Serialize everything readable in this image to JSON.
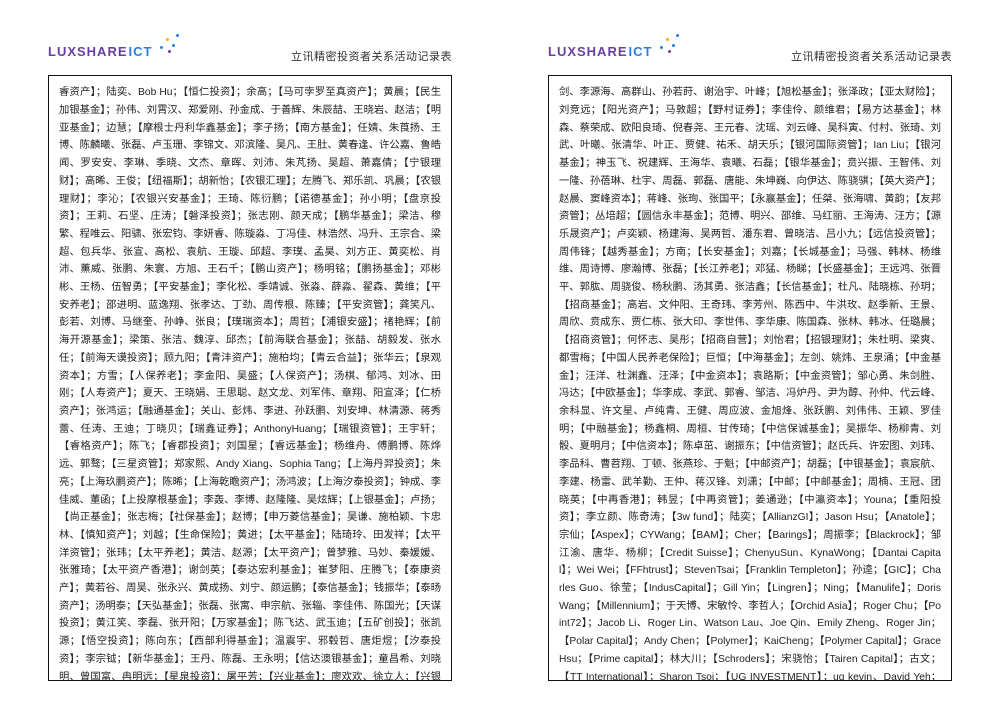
{
  "logo": {
    "lux": "LUXSHARE",
    "ict": "ICT"
  },
  "docTitle": "立讯精密投资者关系活动记录表",
  "leftText": "睿资产】；陆奕、Bob Hu；【恒仁投资】；余高；【马可孛罗至真资产】；黄晨；【民生加银基金】；孙伟、刘霄汉、郑爱刚、孙金成、于善辉、朱辰喆、王晓岩、赵洁；【明亚基金】；边慧；【摩根士丹利华鑫基金】；李子扬；【南方基金】；任婧、朱莨扬、王博、陈麟曦、张磊、卢玉珊、李锦文、邓滨隆、吴凡、王肚、黄春逢、许公嘉、鲁皓闻、罗安安、李琳、季晓、文杰、章晖、刘沛、朱芃扬、吴超、萧嘉倩；【宁银理财】；高晞、王俊；【纽福斯】；胡新怡；【农银汇理】；左腾飞、郑乐凯、巩晨；【农银理财】；李沁；【农银兴安基金】；王琦、陈衍鹏；【诺德基金】；孙小明；【盘京投资】；王莉、石坚、庄涛；【磐泽投资】；张志刚、颜天成；【鹏华基金】；梁洁、穆繁、程唯云、阳骕、张宏钧、李妍睿、陈璇淼、丁冯佳、林浩然、冯升、王宗合、梁超、包兵华、张宣、高松、袁航、王璇、邱超、李璞、孟昊、刘方正、黄奕松、肖沛、薰威、张鹏、朱寰、方旭、王石千；【鹏山资产】；杨明铭；【鹏扬基金】；邓彬彬、王杨、伍智勇；【平安基金】；李化松、季靖诚、张淼、薛淼、翟森、黄维；【平安养老】；邵进明、蓝逸翔、张孝达、丁劲、周传根、陈臻；【平安资管】；龚笑凡、彭若、刘博、马继奎、孙峥、张良；【璞瑞资本】；周哲；【浦银安盛】；禇艳辉；【前海开源基金】；梁策、张洁、魏淳、邱杰；【前海联合基金】；张喆、胡毅发、张水任；【前海天谟投资】；顾九阳；【青沣资产】；施柏均；【青云合益】；张华云；【泉观资本】；方雪；【人保养老】；李金阳、吴盛；【人保资产】；汤棋、郁鸿、刘冰、田刚；【人寿资产】；夏天、王晓娟、王思聪、赵文龙、刘军伟、章翔、阳宣泽；【仁桥资产】；张鸿运；【融通基金】；关山、彭炜、李进、孙跃鹏、刘安坤、林清源、蒋秀蕾、任涛、王迪；丁晓贝；【瑞鑫证券】；AnthonyHuang；【瑞银资管】；王宇轩；【睿格资产】；陈飞；【睿郡投资】；刘国星；【睿远基金】；杨维舟、傅鹏博、陈烨远、郭骜；【三星资管】；郑家熙、Andy Xiang、Sophia Tang；【上海丹羿投资】；朱亮；【上海玖鹏资产】；陈晞；【上海乾瞻资产】；汤鸿波；【上海汐泰投资】；钟成、李佳威、董函；【上投摩根基金】；李轰、李博、赵隆隆、吴炫辉；【上银基金】；卢扬；【尚正基金】；张志梅；【社保基金】；赵博；【申万菱信基金】；吴谦、施柏颖、卞忠林、【慎知资产】；刘越；【生命保险】；黄进；【太平基金】；陆琦玲、田发祥；【太平洋资管】；张玮；【太平养老】；黄洁、赵源；【太平资产】；曾梦雅、马妙、秦媛媛、张雅琦；【太平资产香港】；谢剑英；【泰达宏利基金】；崔梦阳、庄腾飞；【泰康资产】；黄若谷、周吴、张永兴、黄成扬、刘宁、颜运鹏；【泰信基金】；钱振华；【泰旸资产】；汤明泰；【天弘基金】；张磊、张寓、申宗航、张辎、李佳伟、陈国光；【天谋投资】；黄江笑、李磊、张开阳；【万家基金】；陈飞达、武玉迪；【五矿创投】；张凯源；【悟空投资】；陈向东；【西部利得基金】；温震宇、邪毂哲、唐炬煜；【汐泰投资】；李宗钺；【新华基金】；王丹、陈磊、王永明；【信达澳银基金】；童昌希、刘晓明、曾国富、冉明远；【星泉投资】；屠平芳；【兴业基金】；廖欢欢、徐立人；【兴银理财】；江耀堂、胡一峰；【兴证全球基金】；钱鑫、谭佳英、黎秀华、王品、乔迁、陆士杰、童兰、张楷淳、周文波、陈泓志、曹娜、何",
  "rightText": "剑、李源海、高群山、孙若莳、谢治宇、叶峰；【旭松基金】；张泽政；【亚太财险】；刘竞远；【阳光资产】；马敦超；【野村证券】；李佳伶、颜维君；【易方达基金】；林森、蔡荣成、欧阳良琦、倪春尧、王元春、沈瑶、刘云峰、吴科寅、付村、张琦、刘武、叶曦、张清华、叶正、贾健、祐禾、胡天乐；【银河国际资管】；Ian Liu；【银河基金】；神玉飞、祝建辉、王海华、袁曦、石磊；【银华基金】；贲兴振、王智伟、刘一隆、孙蓓琳、杜宇、周磊、郭磊、唐能、朱坤巍、向伊达、陈骁骐；【英大资产】；赵晨、窦峰资本】；蒋峰、张珣、张国平；【永赢基金】；任桀、张海啸、黄韵；【友邦资管】；丛培超；【圆信永丰基金】；范博、明兴、邵维、马红丽、王海涛、汪方；【源乐晟资产】；卢奕颖、杨建海、吴两哲、潘东君、曾晓洁、吕小九；【远信投资管】；周伟锋；【越秀基金】；方南；【长安基金】；刘嘉；【长城基金】；马强、韩林、杨维维、周诗博、廖瀚博、张磊；【长江养老】；邓猛、杨睇；【长盛基金】；王远鸿、张晋平、郭肱、周骁俊、杨秋鹏、汤其勇、张洁鑫；【长信基金】；杜凡、陆晓栋、孙玥；【招商基金】；高岩、文仲阳、王奇玮、李芳州、陈西中、牛洪玫、赵季新、王景、周欣、贲成东、贾仁栋、张大印、李世伟、李华康、陈国森、张林、韩冰、任璐晨；【招商资管】；何怀志、吴彤；【招商自营】；刘怡君；【招银理财】；朱杜明、梁爽、都雪梅；【中国人民养老保险】；巨恒；【中海基金】；左剑、姚炜、王泉涌；【中金基金】；汪洋、杜渊鑫、汪泽；【中金资本】；袁路斯；【中金资管】；邹心勇、朱剑胜、冯达；【中欧基金】；华李成、李武、郭睿、邹洁、冯炉丹、尹为醇、孙仲、代云峰、余科显、许文星、卢纯青、王健、周应波、金旭烽、张跃鹏、刘伟伟、王颖、罗佳明；【中融基金】；杨鑫桐、周桓、甘传琦；【中信保诚基金】；吴振华、杨柳青、刘骰、夏明月；【中信资本】；陈卓茁、谢振东；【中信资管】；赵氏兵、许宏图、刘玮、李品科、曹苕翔、丁顿、张燕珍、于魁；【中邮资产】；胡磊；【中银基金】；袁宸航、李建、杨雷、武羊勤、王仲、蒋汉锋、刘潇；【中邮；【中邮基金】；周楠、王冠、团晓英；【中再香港】；韩昱；【中再资管】；姜通逊；【中瀛资本】；Youna；【重阳投资】；李立颜、陈奇涛；【3w fund】；陆奕；【AllianzGI】；Jason Hsu；【Anatole】；宗仙；【Aspex】；CYWang；【BAM】；Cher；【Barings】；周振李；【Blackrock】；邹江渝、唐华、杨柳；【Credit Suisse】；ChenyuSun、KynaWong；【Dantai Capital】；Wei Wei；【FFhtrust】；StevenTsai；【Franklin Templeton】；孙逵；【GIC】；Charles Guo、徐莹；【IndusCapital】；Gill Yin；【Lingren】；Ning；【Manulife】；Doris Wang；【Millennium】；于天博、宋敏怜、李哲人；【Orchid Asia】；Roger Chu；【Point72】；Jacob Li、Roger Lin、Watson Lau、Joe Qin、Emily Zheng、Roger Jin；【Polar Capital】；Andy Chen；【Polymer】；KaiCheng；【Polymer Capital】；Grace Hsu；【Prime capital】；林大川；【Schroders】；宋骁怡；【Tairen Capital】；古文；【TT International】；Sharon Tsoi；【UG INVESTMENT】；ug kevin、David Yeh；【Willing capital】；devin hou；【WT Asset Management】；叶洁；【XinSunFountainCap】；Alec Jin。"
}
